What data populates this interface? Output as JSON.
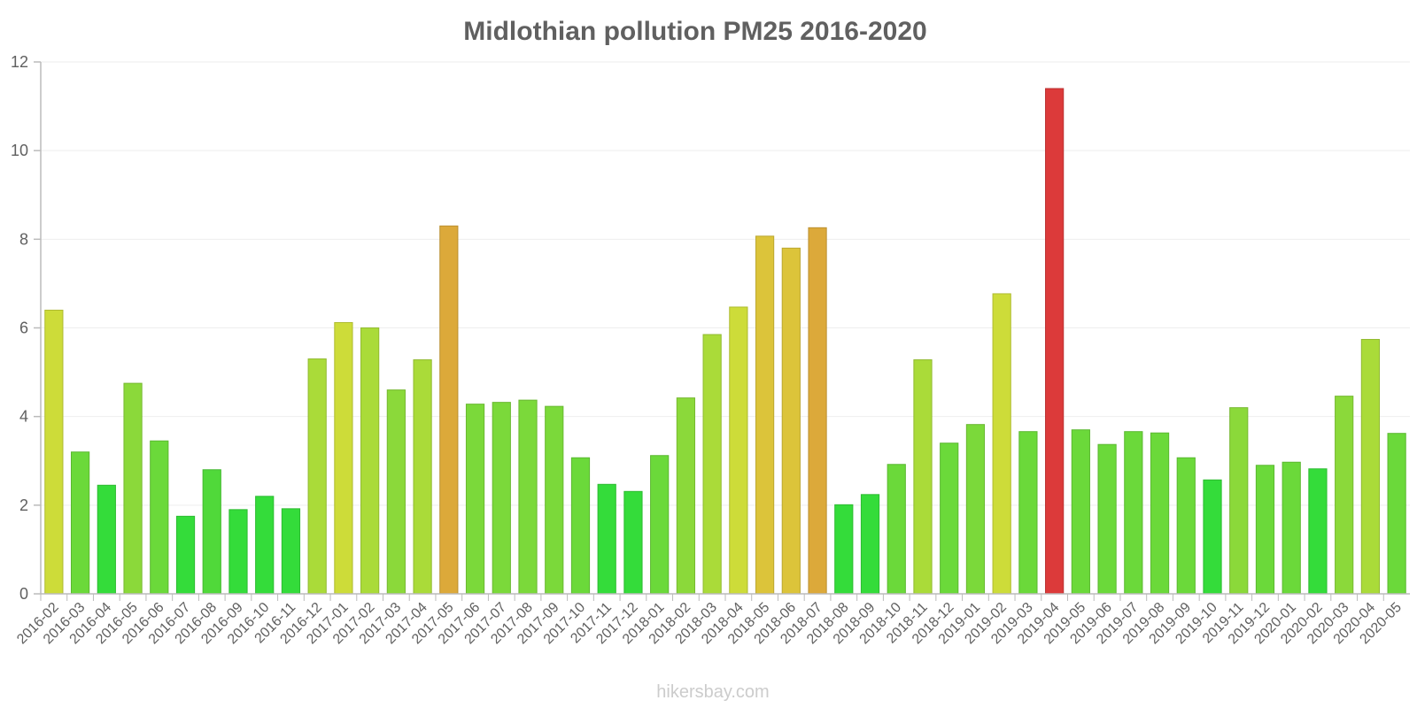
{
  "chart_data": {
    "type": "bar",
    "title": "Midlothian pollution PM25 2016-2020",
    "xlabel": "",
    "ylabel": "",
    "ylim": [
      0,
      12
    ],
    "yticks": [
      0,
      2,
      4,
      6,
      8,
      10,
      12
    ],
    "grid": true,
    "legend": "none",
    "credit": "hikersbay.com",
    "categories": [
      "2016-02",
      "2016-03",
      "2016-04",
      "2016-05",
      "2016-06",
      "2016-07",
      "2016-08",
      "2016-09",
      "2016-10",
      "2016-11",
      "2016-12",
      "2017-01",
      "2017-02",
      "2017-03",
      "2017-04",
      "2017-05",
      "2017-06",
      "2017-07",
      "2017-08",
      "2017-09",
      "2017-10",
      "2017-11",
      "2017-12",
      "2018-01",
      "2018-02",
      "2018-03",
      "2018-04",
      "2018-05",
      "2018-06",
      "2018-07",
      "2018-08",
      "2018-09",
      "2018-10",
      "2018-11",
      "2018-12",
      "2019-01",
      "2019-02",
      "2019-03",
      "2019-04",
      "2019-05",
      "2019-06",
      "2019-07",
      "2019-08",
      "2019-09",
      "2019-10",
      "2019-11",
      "2019-12",
      "2020-01",
      "2020-02",
      "2020-03",
      "2020-04",
      "2020-05"
    ],
    "values": [
      6.4,
      3.2,
      2.45,
      4.75,
      3.45,
      1.75,
      2.8,
      1.9,
      2.2,
      1.92,
      5.3,
      6.12,
      6.0,
      4.6,
      5.28,
      8.3,
      4.28,
      4.32,
      4.37,
      4.23,
      3.07,
      2.47,
      2.31,
      3.12,
      4.42,
      5.85,
      6.47,
      8.07,
      7.8,
      8.26,
      2.01,
      2.24,
      2.92,
      5.28,
      3.4,
      3.82,
      6.77,
      3.66,
      11.4,
      3.7,
      3.37,
      3.66,
      3.63,
      3.07,
      2.57,
      4.2,
      2.9,
      2.97,
      2.82,
      4.46,
      5.74,
      3.62
    ],
    "colors": [
      "#cddc39",
      "#6bd93a",
      "#34dc3a",
      "#8bd93a",
      "#6bd93a",
      "#34dc3a",
      "#50d93a",
      "#34dc3a",
      "#34dc3a",
      "#34dc3a",
      "#aadb39",
      "#cddc39",
      "#aadb39",
      "#8bd93a",
      "#aadb39",
      "#dca93a",
      "#7bd93a",
      "#7bd93a",
      "#7bd93a",
      "#7bd93a",
      "#6bd93a",
      "#34dc3a",
      "#34dc3a",
      "#6bd93a",
      "#8bd93a",
      "#aadb39",
      "#cddc39",
      "#dcc43a",
      "#dcc43a",
      "#dca93a",
      "#34dc3a",
      "#34dc3a",
      "#6bd93a",
      "#aadb39",
      "#6bd93a",
      "#7bd93a",
      "#cddc39",
      "#6bd93a",
      "#dc3a3a",
      "#6bd93a",
      "#6bd93a",
      "#6bd93a",
      "#6bd93a",
      "#6bd93a",
      "#34dc3a",
      "#8bd93a",
      "#6bd93a",
      "#6bd93a",
      "#34dc3a",
      "#8bd93a",
      "#aadb39",
      "#6bd93a"
    ]
  }
}
